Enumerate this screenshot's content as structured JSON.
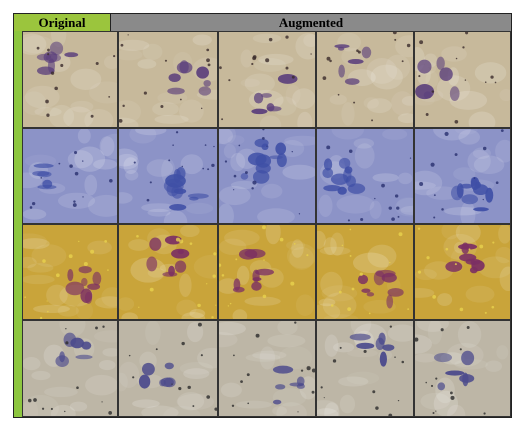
{
  "headers": {
    "original": "Original",
    "augmented": "Augmented"
  },
  "rows": [
    {
      "stain": "pap-beige",
      "bg": "#c7b99b",
      "cell": "#5b3f7c",
      "accent": "#3a2a2a"
    },
    {
      "stain": "blue-wright",
      "bg": "#8c93c7",
      "cell": "#3f4fa6",
      "accent": "#28306e"
    },
    {
      "stain": "yellow-he",
      "bg": "#c9a43a",
      "cell": "#7b2f63",
      "accent": "#e8d24e"
    },
    {
      "stain": "gray-beige",
      "bg": "#bdb6a6",
      "cell": "#4b4a8c",
      "accent": "#2a2a2a"
    }
  ],
  "columns": 5
}
